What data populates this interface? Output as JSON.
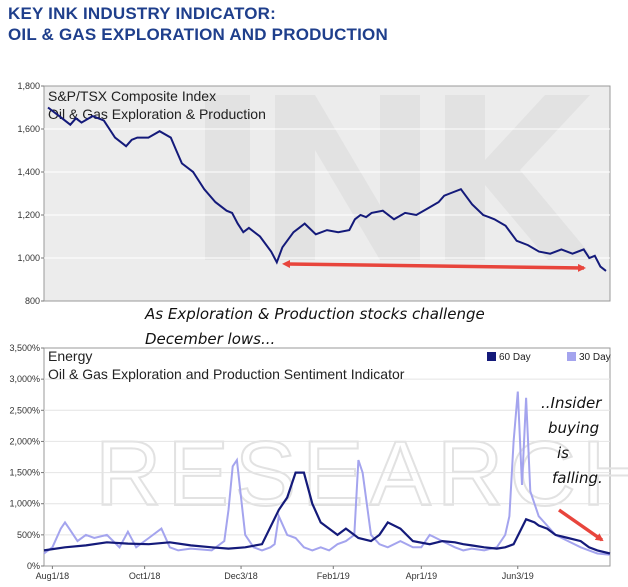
{
  "header": {
    "title_line1": "KEY INK INDUSTRY INDICATOR:",
    "title_line2": "OIL & GAS EXPLORATION AND PRODUCTION"
  },
  "colors": {
    "series_60": "#141a7a",
    "series_30": "#a4a4ee",
    "arrow": "#e8453c",
    "plot_bg": "#ececec",
    "title": "#1f3f8c"
  },
  "chart_data": [
    {
      "type": "line",
      "title": "S&P/TSX Composite Index",
      "subtitle": "Oil & Gas Exploration & Production",
      "yticks": [
        "1,800",
        "1,600",
        "1,400",
        "1,200",
        "1,000",
        "800"
      ],
      "ylim": [
        800,
        1800
      ],
      "xlim": [
        0,
        100
      ],
      "series": [
        {
          "x": [
            0,
            2,
            4,
            5,
            6,
            8,
            10,
            11,
            12,
            14,
            15,
            16,
            18,
            20,
            22,
            23,
            24,
            26,
            28,
            30,
            32,
            33,
            34,
            35,
            36,
            38,
            40,
            41,
            42,
            44,
            45,
            46,
            48,
            50,
            52,
            54,
            55,
            56,
            57,
            58,
            60,
            62,
            64,
            66,
            68,
            70,
            71,
            72,
            74,
            76,
            78,
            79,
            80,
            82,
            84,
            86,
            88,
            90,
            92,
            94,
            96,
            97,
            98,
            99,
            100
          ],
          "values": [
            1700,
            1660,
            1620,
            1650,
            1630,
            1660,
            1640,
            1600,
            1560,
            1520,
            1550,
            1560,
            1560,
            1590,
            1560,
            1500,
            1440,
            1400,
            1320,
            1260,
            1220,
            1210,
            1160,
            1120,
            1140,
            1100,
            1030,
            980,
            1050,
            1120,
            1140,
            1160,
            1110,
            1130,
            1120,
            1130,
            1180,
            1200,
            1190,
            1210,
            1220,
            1180,
            1210,
            1200,
            1230,
            1260,
            1290,
            1300,
            1320,
            1250,
            1200,
            1190,
            1180,
            1150,
            1080,
            1060,
            1030,
            1020,
            1040,
            1020,
            1040,
            1000,
            1010,
            960,
            940
          ]
        }
      ],
      "annotation": {
        "line1": "As Exploration & Production stocks challenge",
        "line2": "December lows..."
      }
    },
    {
      "type": "line",
      "title": "Energy",
      "subtitle": "Oil & Gas Exploration and Production Sentiment Indicator",
      "yticks": [
        "3,500%",
        "3,000%",
        "2,500%",
        "2,000%",
        "1,500%",
        "1,000%",
        "500%",
        "0%"
      ],
      "xticks": [
        "Aug1/18",
        "Oct1/18",
        "Dec3/18",
        "Feb1/19",
        "Apr1/19",
        "Jun3/19"
      ],
      "xtick_positions": [
        2,
        24,
        47,
        69,
        90,
        113
      ],
      "ylim": [
        0,
        3500
      ],
      "xlim": [
        0,
        135
      ],
      "legend": [
        "60 Day",
        "30 Day"
      ],
      "series": [
        {
          "name": "60 Day",
          "x": [
            0,
            5,
            10,
            15,
            20,
            25,
            30,
            35,
            40,
            44,
            48,
            52,
            56,
            58,
            60,
            62,
            64,
            66,
            68,
            70,
            72,
            75,
            78,
            80,
            82,
            85,
            88,
            92,
            95,
            98,
            100,
            102,
            105,
            108,
            110,
            112,
            115,
            117,
            118,
            120,
            122,
            125,
            128,
            130,
            132,
            135
          ],
          "values": [
            250,
            300,
            330,
            380,
            360,
            350,
            380,
            330,
            300,
            280,
            300,
            350,
            900,
            1100,
            1500,
            1500,
            1000,
            700,
            600,
            500,
            600,
            450,
            400,
            500,
            700,
            600,
            400,
            350,
            400,
            380,
            350,
            330,
            300,
            280,
            300,
            350,
            750,
            700,
            650,
            600,
            500,
            450,
            400,
            300,
            250,
            200
          ]
        },
        {
          "name": "30 Day",
          "x": [
            0,
            2,
            4,
            5,
            6,
            8,
            10,
            12,
            15,
            18,
            20,
            22,
            25,
            28,
            30,
            32,
            35,
            40,
            43,
            44,
            45,
            46,
            48,
            50,
            52,
            54,
            55,
            56,
            58,
            60,
            62,
            64,
            66,
            68,
            70,
            72,
            74,
            75,
            76,
            78,
            80,
            82,
            85,
            88,
            90,
            92,
            95,
            98,
            100,
            102,
            105,
            108,
            110,
            111,
            112,
            113,
            114,
            115,
            116,
            118,
            120,
            122,
            125,
            128,
            130,
            132,
            135
          ],
          "values": [
            200,
            300,
            600,
            700,
            600,
            400,
            500,
            450,
            500,
            300,
            550,
            300,
            450,
            600,
            300,
            250,
            280,
            250,
            400,
            900,
            1600,
            1700,
            500,
            300,
            250,
            300,
            350,
            800,
            500,
            450,
            300,
            250,
            300,
            250,
            350,
            400,
            500,
            1700,
            1500,
            500,
            350,
            300,
            400,
            300,
            300,
            500,
            400,
            300,
            250,
            280,
            250,
            300,
            500,
            800,
            2000,
            2800,
            1300,
            2700,
            1200,
            800,
            650,
            500,
            400,
            300,
            250,
            200,
            180
          ]
        }
      ],
      "annotation": [
        "..Insider",
        "buying",
        "is",
        "falling."
      ]
    }
  ]
}
